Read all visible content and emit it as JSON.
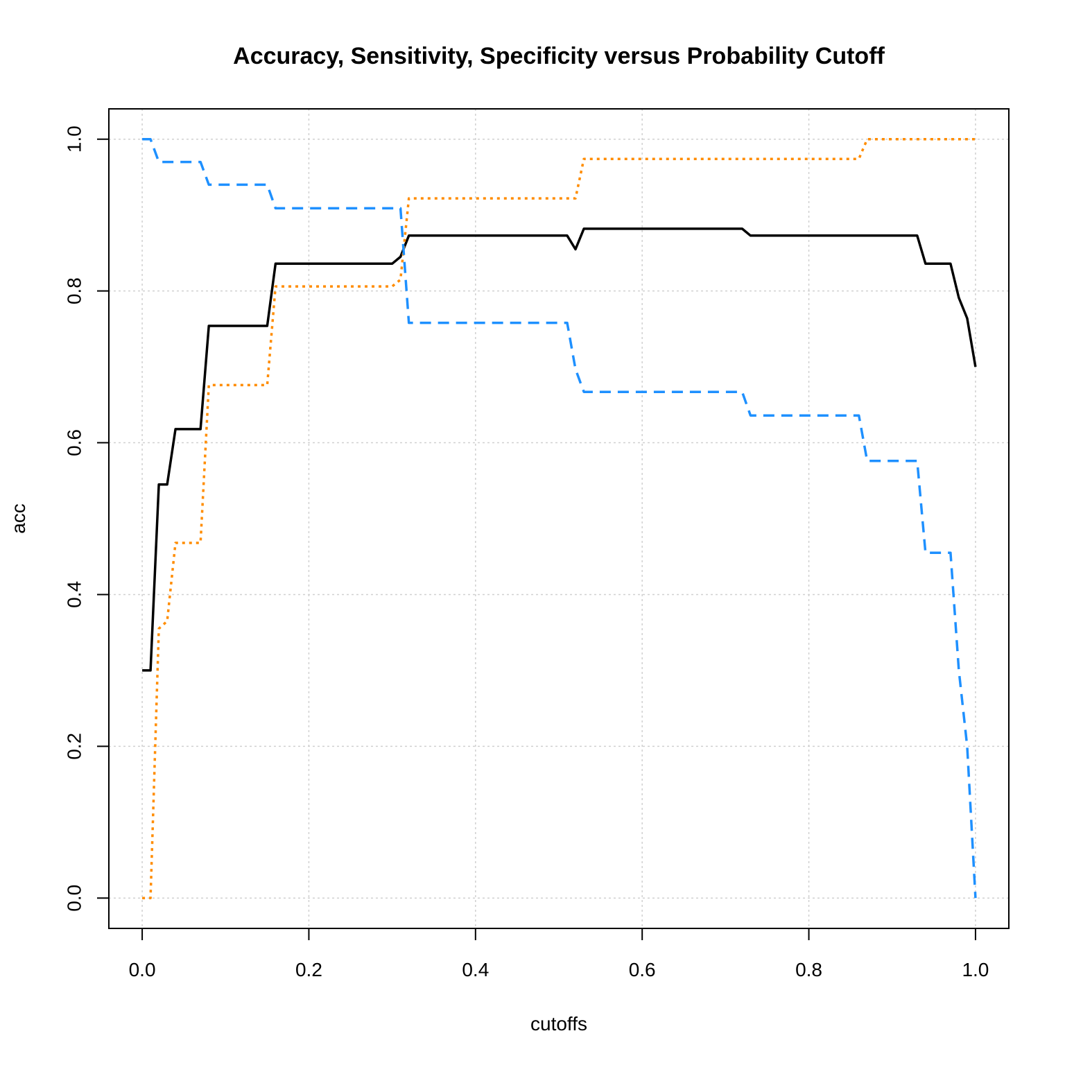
{
  "chart_data": {
    "type": "line",
    "title": "Accuracy, Sensitivity, Specificity versus Probability Cutoff",
    "xlabel": "cutoffs",
    "ylabel": "acc",
    "xlim": [
      -0.04,
      1.04
    ],
    "ylim": [
      -0.04,
      1.04
    ],
    "x_ticks": [
      0.0,
      0.2,
      0.4,
      0.6,
      0.8,
      1.0
    ],
    "x_tick_labels": [
      "0.0",
      "0.2",
      "0.4",
      "0.6",
      "0.8",
      "1.0"
    ],
    "y_ticks": [
      0.0,
      0.2,
      0.4,
      0.6,
      0.8,
      1.0
    ],
    "y_tick_labels": [
      "0.0",
      "0.2",
      "0.4",
      "0.6",
      "0.8",
      "1.0"
    ],
    "grid": true,
    "legend": "none",
    "series": [
      {
        "color": "#000000",
        "style": "solid",
        "x": [
          0,
          0.01,
          0.02,
          0.03,
          0.04,
          0.05,
          0.06,
          0.07,
          0.08,
          0.09,
          0.1,
          0.15,
          0.16,
          0.2,
          0.3,
          0.31,
          0.32,
          0.4,
          0.51,
          0.52,
          0.53,
          0.6,
          0.72,
          0.73,
          0.8,
          0.93,
          0.94,
          0.97,
          0.98,
          0.99,
          1.0
        ],
        "y": [
          0.3,
          0.3,
          0.545,
          0.545,
          0.618,
          0.618,
          0.618,
          0.618,
          0.754,
          0.754,
          0.754,
          0.754,
          0.836,
          0.836,
          0.836,
          0.845,
          0.873,
          0.873,
          0.873,
          0.855,
          0.882,
          0.882,
          0.882,
          0.873,
          0.873,
          0.873,
          0.836,
          0.836,
          0.791,
          0.764,
          0.7
        ]
      },
      {
        "color": "#FF8C00",
        "style": "dotted",
        "x": [
          0,
          0.01,
          0.02,
          0.03,
          0.04,
          0.05,
          0.06,
          0.07,
          0.08,
          0.09,
          0.1,
          0.15,
          0.16,
          0.2,
          0.3,
          0.31,
          0.32,
          0.4,
          0.51,
          0.52,
          0.53,
          0.6,
          0.8,
          0.86,
          0.87,
          0.9,
          1.0
        ],
        "y": [
          0.0,
          0.0,
          0.355,
          0.365,
          0.468,
          0.468,
          0.468,
          0.468,
          0.676,
          0.676,
          0.676,
          0.676,
          0.806,
          0.806,
          0.806,
          0.815,
          0.922,
          0.922,
          0.922,
          0.922,
          0.974,
          0.974,
          0.974,
          0.974,
          1.0,
          1.0,
          1.0
        ]
      },
      {
        "color": "#1E90FF",
        "style": "dashed",
        "x": [
          0,
          0.01,
          0.02,
          0.03,
          0.04,
          0.05,
          0.06,
          0.07,
          0.08,
          0.09,
          0.1,
          0.15,
          0.16,
          0.2,
          0.3,
          0.31,
          0.32,
          0.4,
          0.51,
          0.52,
          0.53,
          0.6,
          0.72,
          0.73,
          0.8,
          0.86,
          0.87,
          0.93,
          0.94,
          0.97,
          0.98,
          0.99,
          1.0
        ],
        "y": [
          1.0,
          1.0,
          0.97,
          0.97,
          0.97,
          0.97,
          0.97,
          0.97,
          0.94,
          0.94,
          0.94,
          0.94,
          0.909,
          0.909,
          0.909,
          0.909,
          0.758,
          0.758,
          0.758,
          0.697,
          0.667,
          0.667,
          0.667,
          0.636,
          0.636,
          0.636,
          0.576,
          0.576,
          0.455,
          0.455,
          0.3,
          0.2,
          0.0
        ]
      }
    ]
  }
}
